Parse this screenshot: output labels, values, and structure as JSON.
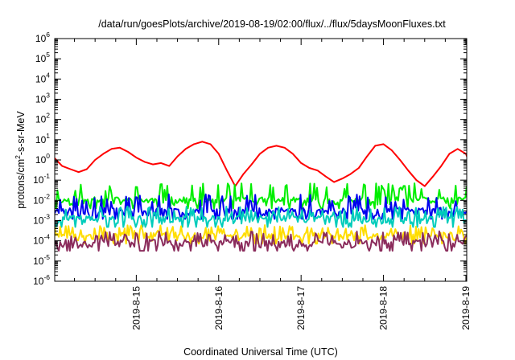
{
  "chart_data": {
    "type": "line",
    "title": "/data/run/goesPlots/archive/2019-08-19/02:00/flux/../flux/5daysMoonFluxes.txt",
    "xlabel": "Coordinated Universal Time (UTC)",
    "ylabel_parts": [
      "protons/cm",
      "2",
      "-s-sr-MeV"
    ],
    "y_scale": "log",
    "ylim": [
      1e-06,
      1000000.0
    ],
    "y_ticks": [
      {
        "base": "10",
        "exp": "-6"
      },
      {
        "base": "10",
        "exp": "-5"
      },
      {
        "base": "10",
        "exp": "-4"
      },
      {
        "base": "10",
        "exp": "-3"
      },
      {
        "base": "10",
        "exp": "-2"
      },
      {
        "base": "10",
        "exp": "-1"
      },
      {
        "base": "10",
        "exp": "0"
      },
      {
        "base": "10",
        "exp": "1"
      },
      {
        "base": "10",
        "exp": "2"
      },
      {
        "base": "10",
        "exp": "3"
      },
      {
        "base": "10",
        "exp": "4"
      },
      {
        "base": "10",
        "exp": "5"
      },
      {
        "base": "10",
        "exp": "6"
      }
    ],
    "xlim": [
      -0.99,
      4.01
    ],
    "x_ticks": [
      "2019-8-15",
      "2019-8-16",
      "2019-8-17",
      "2019-8-18",
      "2019-8-19"
    ],
    "x_tick_values": [
      0,
      1,
      2,
      3,
      4
    ],
    "grid": false,
    "series": [
      {
        "color": "#ff0000",
        "style": "smooth",
        "points": [
          [
            -0.99,
            1.2
          ],
          [
            -0.9,
            0.5
          ],
          [
            -0.8,
            0.35
          ],
          [
            -0.7,
            0.25
          ],
          [
            -0.6,
            0.35
          ],
          [
            -0.5,
            1.0
          ],
          [
            -0.4,
            2.0
          ],
          [
            -0.3,
            3.5
          ],
          [
            -0.2,
            4.0
          ],
          [
            -0.1,
            2.5
          ],
          [
            0.0,
            1.3
          ],
          [
            0.1,
            0.8
          ],
          [
            0.2,
            0.6
          ],
          [
            0.3,
            0.7
          ],
          [
            0.4,
            0.5
          ],
          [
            0.5,
            1.5
          ],
          [
            0.6,
            3.5
          ],
          [
            0.7,
            6.0
          ],
          [
            0.8,
            8.0
          ],
          [
            0.9,
            6.0
          ],
          [
            1.0,
            2.0
          ],
          [
            1.1,
            0.3
          ],
          [
            1.2,
            0.05
          ],
          [
            1.3,
            0.2
          ],
          [
            1.4,
            0.6
          ],
          [
            1.5,
            2.0
          ],
          [
            1.6,
            4.0
          ],
          [
            1.7,
            5.0
          ],
          [
            1.8,
            4.0
          ],
          [
            1.9,
            2.0
          ],
          [
            2.0,
            0.7
          ],
          [
            2.1,
            0.4
          ],
          [
            2.2,
            0.3
          ],
          [
            2.3,
            0.15
          ],
          [
            2.4,
            0.08
          ],
          [
            2.5,
            0.12
          ],
          [
            2.6,
            0.2
          ],
          [
            2.7,
            0.4
          ],
          [
            2.8,
            1.5
          ],
          [
            2.9,
            5.0
          ],
          [
            3.0,
            6.0
          ],
          [
            3.1,
            3.0
          ],
          [
            3.2,
            1.0
          ],
          [
            3.3,
            0.3
          ],
          [
            3.4,
            0.1
          ],
          [
            3.5,
            0.05
          ],
          [
            3.6,
            0.15
          ],
          [
            3.7,
            0.5
          ],
          [
            3.8,
            2.0
          ],
          [
            3.9,
            3.5
          ],
          [
            4.0,
            2.0
          ],
          [
            4.05,
            0.6
          ],
          [
            4.1,
            0.15
          ]
        ]
      },
      {
        "color": "#00ee00",
        "style": "spiky",
        "base": 0.01,
        "spike": 0.07,
        "seed": 11
      },
      {
        "color": "#0000ee",
        "style": "spiky",
        "base": 0.003,
        "spike": 0.02,
        "seed": 23
      },
      {
        "color": "#00ccbb",
        "style": "spiky",
        "base": 0.0012,
        "spike": 0.005,
        "seed": 37
      },
      {
        "color": "#ffdd00",
        "style": "spiky",
        "base": 0.00018,
        "spike": 0.0006,
        "seed": 51
      },
      {
        "color": "#8b2c5c",
        "style": "spiky",
        "base": 8e-05,
        "spike": 0.0003,
        "seed": 67
      }
    ]
  }
}
